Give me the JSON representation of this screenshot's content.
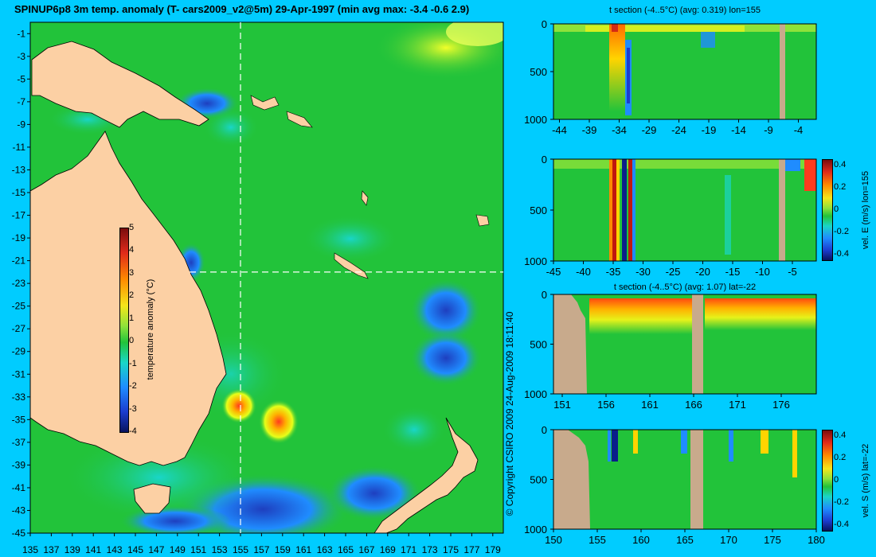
{
  "page": {
    "title": "SPINUP6p8 3m temp. anomaly (T- cars2009_v2@5m) 29-Apr-1997 (min avg max: -3.4 -0.6 2.9)",
    "copyright": "© Copyright CSIRO 2009   24-Aug-2009 18:11:40"
  },
  "colors": {
    "background": "#00ccff",
    "land": "#fcd0a4",
    "section_land": "#c8aa8c",
    "ocean_neutral": "#22c33a"
  },
  "chart_data": [
    {
      "id": "map",
      "type": "heatmap",
      "title": "SPINUP6p8 3m temp. anomaly (T- cars2009_v2@5m) 29-Apr-1997 (min avg max: -3.4 -0.6 2.9)",
      "x_ticks": [
        "135",
        "137",
        "139",
        "141",
        "143",
        "145",
        "147",
        "149",
        "151",
        "153",
        "155",
        "157",
        "159",
        "161",
        "163",
        "165",
        "167",
        "169",
        "171",
        "173",
        "175",
        "177",
        "179"
      ],
      "y_ticks": [
        "-1",
        "-3",
        "-5",
        "-7",
        "-9",
        "-11",
        "-13",
        "-15",
        "-17",
        "-19",
        "-21",
        "-23",
        "-25",
        "-27",
        "-29",
        "-31",
        "-33",
        "-35",
        "-37",
        "-39",
        "-41",
        "-43",
        "-45"
      ],
      "xlim": [
        135,
        180
      ],
      "ylim": [
        -45,
        0
      ],
      "section_lines": {
        "lon": 155,
        "lat": -22
      },
      "colorbar": {
        "label": "temperature anomaly (°C)",
        "ticks": [
          "5",
          "4",
          "3",
          "2",
          "1",
          "0",
          "-1",
          "-2",
          "-3",
          "-4"
        ],
        "range": [
          -4,
          5
        ]
      },
      "summary": {
        "min": -3.4,
        "avg": -0.6,
        "max": 2.9
      }
    },
    {
      "id": "section-1",
      "type": "heatmap",
      "title": "t section (-4..5°C) (avg: 0.319) lon=155",
      "x_ticks": [
        "-44",
        "-39",
        "-34",
        "-29",
        "-24",
        "-19",
        "-14",
        "-9",
        "-4"
      ],
      "y_ticks": [
        "0",
        "500",
        "1000"
      ],
      "xlim": [
        -45,
        -1
      ],
      "ylim": [
        1000,
        0
      ]
    },
    {
      "id": "section-2",
      "type": "heatmap",
      "title": "",
      "x_ticks": [
        "-45",
        "-40",
        "-35",
        "-30",
        "-25",
        "-20",
        "-15",
        "-10",
        "-5"
      ],
      "y_ticks": [
        "0",
        "500",
        "1000"
      ],
      "xlim": [
        -45,
        -1
      ],
      "ylim": [
        1000,
        0
      ],
      "colorbar": {
        "label": "vel. E (m/s) lon=155",
        "ticks": [
          "0.4",
          "0.2",
          "0",
          "-0.2",
          "-0.4"
        ],
        "range": [
          -0.45,
          0.45
        ]
      }
    },
    {
      "id": "section-3",
      "type": "heatmap",
      "title": "t section (-4..5°C) (avg: 1.07) lat=-22",
      "x_ticks": [
        "151",
        "156",
        "161",
        "166",
        "171",
        "176"
      ],
      "y_ticks": [
        "0",
        "500",
        "1000"
      ],
      "xlim": [
        150,
        180
      ],
      "ylim": [
        1000,
        0
      ]
    },
    {
      "id": "section-4",
      "type": "heatmap",
      "title": "",
      "x_ticks": [
        "150",
        "155",
        "160",
        "165",
        "170",
        "175",
        "180"
      ],
      "y_ticks": [
        "0",
        "500",
        "1000"
      ],
      "xlim": [
        150,
        180
      ],
      "ylim": [
        1000,
        0
      ],
      "colorbar": {
        "label": "vel. S (m/s) lat=-22",
        "ticks": [
          "0.4",
          "0.2",
          "0",
          "-0.2",
          "-0.4"
        ],
        "range": [
          -0.45,
          0.45
        ]
      }
    }
  ]
}
